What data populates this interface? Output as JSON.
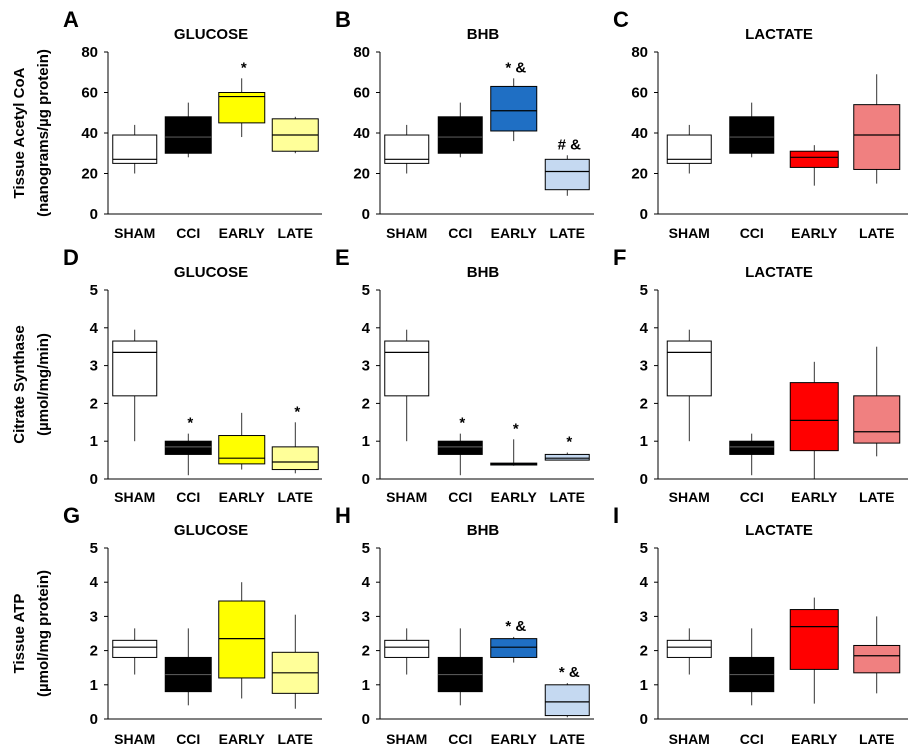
{
  "chart_data": [
    {
      "panel": "A",
      "type": "box",
      "title": "GLUCOSE",
      "ylim": [
        0,
        80
      ],
      "yticks": [
        0,
        20,
        40,
        60,
        80
      ],
      "categories": [
        "SHAM",
        "CCI",
        "EARLY",
        "LATE"
      ],
      "boxes": [
        {
          "category": "SHAM",
          "color": "#ffffff",
          "whisker_low": 20,
          "q1": 25,
          "median": 27,
          "q3": 39,
          "whisker_high": 44,
          "annotation": ""
        },
        {
          "category": "CCI",
          "color": "#000000",
          "whisker_low": 28,
          "q1": 30,
          "median": 38,
          "q3": 48,
          "whisker_high": 55,
          "annotation": ""
        },
        {
          "category": "EARLY",
          "color": "#ffff00",
          "whisker_low": 38,
          "q1": 45,
          "median": 58,
          "q3": 60,
          "whisker_high": 67,
          "annotation": "*"
        },
        {
          "category": "LATE",
          "color": "#ffff99",
          "whisker_low": 30,
          "q1": 31,
          "median": 39,
          "q3": 47,
          "whisker_high": 48,
          "annotation": ""
        }
      ]
    },
    {
      "panel": "B",
      "type": "box",
      "title": "BHB",
      "ylim": [
        0,
        80
      ],
      "yticks": [
        0,
        20,
        40,
        60,
        80
      ],
      "categories": [
        "SHAM",
        "CCI",
        "EARLY",
        "LATE"
      ],
      "boxes": [
        {
          "category": "SHAM",
          "color": "#ffffff",
          "whisker_low": 20,
          "q1": 25,
          "median": 27,
          "q3": 39,
          "whisker_high": 44,
          "annotation": ""
        },
        {
          "category": "CCI",
          "color": "#000000",
          "whisker_low": 28,
          "q1": 30,
          "median": 38,
          "q3": 48,
          "whisker_high": 55,
          "annotation": ""
        },
        {
          "category": "EARLY",
          "color": "#1f6fc4",
          "whisker_low": 36,
          "q1": 41,
          "median": 51,
          "q3": 63,
          "whisker_high": 67,
          "annotation": "* &"
        },
        {
          "category": "LATE",
          "color": "#c5d9f1",
          "whisker_low": 9,
          "q1": 12,
          "median": 21,
          "q3": 27,
          "whisker_high": 29,
          "annotation": "# &"
        }
      ]
    },
    {
      "panel": "C",
      "type": "box",
      "title": "LACTATE",
      "ylim": [
        0,
        80
      ],
      "yticks": [
        0,
        20,
        40,
        60,
        80
      ],
      "categories": [
        "SHAM",
        "CCI",
        "EARLY",
        "LATE"
      ],
      "boxes": [
        {
          "category": "SHAM",
          "color": "#ffffff",
          "whisker_low": 20,
          "q1": 25,
          "median": 27,
          "q3": 39,
          "whisker_high": 44,
          "annotation": ""
        },
        {
          "category": "CCI",
          "color": "#000000",
          "whisker_low": 28,
          "q1": 30,
          "median": 38,
          "q3": 48,
          "whisker_high": 55,
          "annotation": ""
        },
        {
          "category": "EARLY",
          "color": "#ff0000",
          "whisker_low": 14,
          "q1": 23,
          "median": 28,
          "q3": 31,
          "whisker_high": 34,
          "annotation": ""
        },
        {
          "category": "LATE",
          "color": "#f08080",
          "whisker_low": 15,
          "q1": 22,
          "median": 39,
          "q3": 54,
          "whisker_high": 69,
          "annotation": ""
        }
      ]
    },
    {
      "panel": "D",
      "type": "box",
      "title": "GLUCOSE",
      "ylim": [
        0,
        5
      ],
      "yticks": [
        0,
        1,
        2,
        3,
        4,
        5
      ],
      "categories": [
        "SHAM",
        "CCI",
        "EARLY",
        "LATE"
      ],
      "boxes": [
        {
          "category": "SHAM",
          "color": "#ffffff",
          "whisker_low": 1.0,
          "q1": 2.2,
          "median": 3.35,
          "q3": 3.65,
          "whisker_high": 3.95,
          "annotation": ""
        },
        {
          "category": "CCI",
          "color": "#000000",
          "whisker_low": 0.1,
          "q1": 0.65,
          "median": 0.85,
          "q3": 1.0,
          "whisker_high": 1.2,
          "annotation": "*"
        },
        {
          "category": "EARLY",
          "color": "#ffff00",
          "whisker_low": 0.25,
          "q1": 0.4,
          "median": 0.55,
          "q3": 1.15,
          "whisker_high": 1.75,
          "annotation": ""
        },
        {
          "category": "LATE",
          "color": "#ffff99",
          "whisker_low": 0.15,
          "q1": 0.25,
          "median": 0.45,
          "q3": 0.85,
          "whisker_high": 1.5,
          "annotation": "*"
        }
      ]
    },
    {
      "panel": "E",
      "type": "box",
      "title": "BHB",
      "ylim": [
        0,
        5
      ],
      "yticks": [
        0,
        1,
        2,
        3,
        4,
        5
      ],
      "categories": [
        "SHAM",
        "CCI",
        "EARLY",
        "LATE"
      ],
      "boxes": [
        {
          "category": "SHAM",
          "color": "#ffffff",
          "whisker_low": 1.0,
          "q1": 2.2,
          "median": 3.35,
          "q3": 3.65,
          "whisker_high": 3.95,
          "annotation": ""
        },
        {
          "category": "CCI",
          "color": "#000000",
          "whisker_low": 0.1,
          "q1": 0.65,
          "median": 0.85,
          "q3": 1.0,
          "whisker_high": 1.2,
          "annotation": "*"
        },
        {
          "category": "EARLY",
          "color": "#1f6fc4",
          "whisker_low": 0.35,
          "q1": 0.37,
          "median": 0.4,
          "q3": 0.42,
          "whisker_high": 1.05,
          "annotation": "*"
        },
        {
          "category": "LATE",
          "color": "#c5d9f1",
          "whisker_low": 0.5,
          "q1": 0.5,
          "median": 0.55,
          "q3": 0.65,
          "whisker_high": 0.7,
          "annotation": "*"
        }
      ]
    },
    {
      "panel": "F",
      "type": "box",
      "title": "LACTATE",
      "ylim": [
        0,
        5
      ],
      "yticks": [
        0,
        1,
        2,
        3,
        4,
        5
      ],
      "categories": [
        "SHAM",
        "CCI",
        "EARLY",
        "LATE"
      ],
      "boxes": [
        {
          "category": "SHAM",
          "color": "#ffffff",
          "whisker_low": 1.0,
          "q1": 2.2,
          "median": 3.35,
          "q3": 3.65,
          "whisker_high": 3.95,
          "annotation": ""
        },
        {
          "category": "CCI",
          "color": "#000000",
          "whisker_low": 0.1,
          "q1": 0.65,
          "median": 0.85,
          "q3": 1.0,
          "whisker_high": 1.2,
          "annotation": ""
        },
        {
          "category": "EARLY",
          "color": "#ff0000",
          "whisker_low": 0.0,
          "q1": 0.75,
          "median": 1.55,
          "q3": 2.55,
          "whisker_high": 3.1,
          "annotation": ""
        },
        {
          "category": "LATE",
          "color": "#f08080",
          "whisker_low": 0.6,
          "q1": 0.95,
          "median": 1.25,
          "q3": 2.2,
          "whisker_high": 3.5,
          "annotation": ""
        }
      ]
    },
    {
      "panel": "G",
      "type": "box",
      "title": "GLUCOSE",
      "ylim": [
        0,
        5
      ],
      "yticks": [
        0,
        1,
        2,
        3,
        4,
        5
      ],
      "categories": [
        "SHAM",
        "CCI",
        "EARLY",
        "LATE"
      ],
      "boxes": [
        {
          "category": "SHAM",
          "color": "#ffffff",
          "whisker_low": 1.3,
          "q1": 1.8,
          "median": 2.1,
          "q3": 2.3,
          "whisker_high": 2.65,
          "annotation": ""
        },
        {
          "category": "CCI",
          "color": "#000000",
          "whisker_low": 0.4,
          "q1": 0.8,
          "median": 1.3,
          "q3": 1.8,
          "whisker_high": 2.65,
          "annotation": ""
        },
        {
          "category": "EARLY",
          "color": "#ffff00",
          "whisker_low": 0.6,
          "q1": 1.2,
          "median": 2.35,
          "q3": 3.45,
          "whisker_high": 4.0,
          "annotation": ""
        },
        {
          "category": "LATE",
          "color": "#ffff99",
          "whisker_low": 0.3,
          "q1": 0.75,
          "median": 1.35,
          "q3": 1.95,
          "whisker_high": 3.05,
          "annotation": ""
        }
      ]
    },
    {
      "panel": "H",
      "type": "box",
      "title": "BHB",
      "ylim": [
        0,
        5
      ],
      "yticks": [
        0,
        1,
        2,
        3,
        4,
        5
      ],
      "categories": [
        "SHAM",
        "CCI",
        "EARLY",
        "LATE"
      ],
      "boxes": [
        {
          "category": "SHAM",
          "color": "#ffffff",
          "whisker_low": 1.3,
          "q1": 1.8,
          "median": 2.1,
          "q3": 2.3,
          "whisker_high": 2.65,
          "annotation": ""
        },
        {
          "category": "CCI",
          "color": "#000000",
          "whisker_low": 0.4,
          "q1": 0.8,
          "median": 1.3,
          "q3": 1.8,
          "whisker_high": 2.65,
          "annotation": ""
        },
        {
          "category": "EARLY",
          "color": "#1f6fc4",
          "whisker_low": 1.65,
          "q1": 1.8,
          "median": 2.1,
          "q3": 2.35,
          "whisker_high": 2.4,
          "annotation": "*  &"
        },
        {
          "category": "LATE",
          "color": "#c5d9f1",
          "whisker_low": 0.05,
          "q1": 0.1,
          "median": 0.5,
          "q3": 1.0,
          "whisker_high": 1.05,
          "annotation": "* &"
        }
      ]
    },
    {
      "panel": "I",
      "type": "box",
      "title": "LACTATE",
      "ylim": [
        0,
        5
      ],
      "yticks": [
        0,
        1,
        2,
        3,
        4,
        5
      ],
      "categories": [
        "SHAM",
        "CCI",
        "EARLY",
        "LATE"
      ],
      "boxes": [
        {
          "category": "SHAM",
          "color": "#ffffff",
          "whisker_low": 1.3,
          "q1": 1.8,
          "median": 2.1,
          "q3": 2.3,
          "whisker_high": 2.65,
          "annotation": ""
        },
        {
          "category": "CCI",
          "color": "#000000",
          "whisker_low": 0.4,
          "q1": 0.8,
          "median": 1.3,
          "q3": 1.8,
          "whisker_high": 2.65,
          "annotation": ""
        },
        {
          "category": "EARLY",
          "color": "#ff0000",
          "whisker_low": 0.45,
          "q1": 1.45,
          "median": 2.7,
          "q3": 3.2,
          "whisker_high": 3.55,
          "annotation": ""
        },
        {
          "category": "LATE",
          "color": "#f08080",
          "whisker_low": 0.75,
          "q1": 1.35,
          "median": 1.85,
          "q3": 2.15,
          "whisker_high": 3.0,
          "annotation": ""
        }
      ]
    }
  ],
  "row_ylabels": [
    [
      "Tissue Acetyl CoA",
      "(nanograms/µg protein)"
    ],
    [
      "Citrate Synthase",
      "(µmol/mg/min)"
    ],
    [
      "Tissue ATP",
      "(µmol/mg protein)"
    ]
  ]
}
